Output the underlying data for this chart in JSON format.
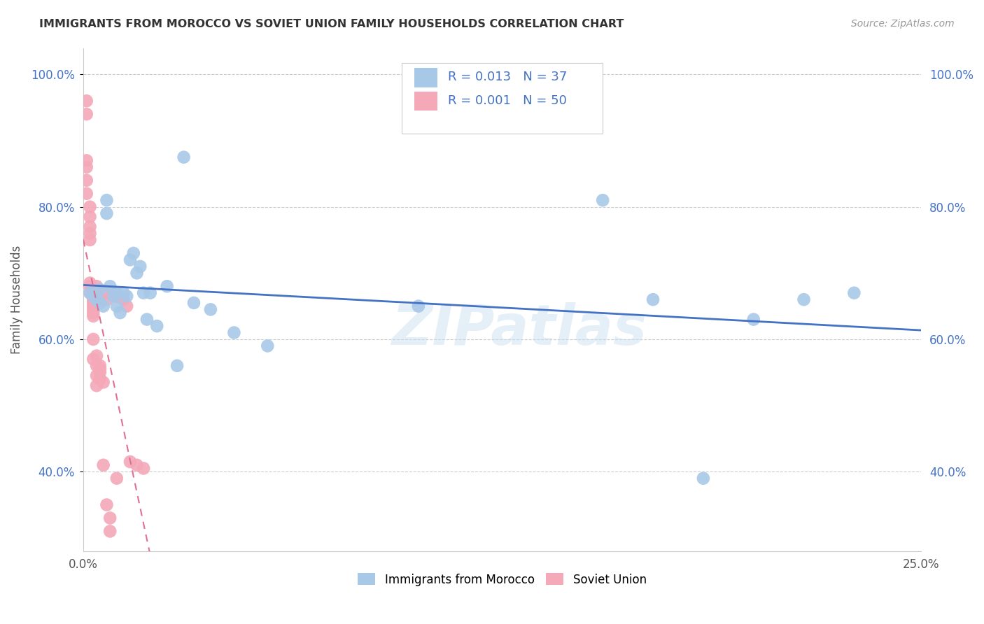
{
  "title": "IMMIGRANTS FROM MOROCCO VS SOVIET UNION FAMILY HOUSEHOLDS CORRELATION CHART",
  "source": "Source: ZipAtlas.com",
  "ylabel": "Family Households",
  "xlim": [
    0.0,
    0.25
  ],
  "ylim": [
    0.28,
    1.04
  ],
  "yticks": [
    0.4,
    0.6,
    0.8,
    1.0
  ],
  "ytick_labels": [
    "40.0%",
    "60.0%",
    "80.0%",
    "100.0%"
  ],
  "grid_color": "#cccccc",
  "legend_morocco_r": "0.013",
  "legend_morocco_n": "37",
  "legend_soviet_r": "0.001",
  "legend_soviet_n": "50",
  "legend_label_morocco": "Immigrants from Morocco",
  "legend_label_soviet": "Soviet Union",
  "color_morocco": "#a8c8e8",
  "color_soviet": "#f4a8b8",
  "trendline_morocco_color": "#4472c4",
  "trendline_soviet_color": "#e07090",
  "watermark": "ZIPatlas",
  "morocco_x": [
    0.002,
    0.003,
    0.004,
    0.005,
    0.005,
    0.006,
    0.007,
    0.007,
    0.008,
    0.009,
    0.01,
    0.01,
    0.011,
    0.012,
    0.013,
    0.014,
    0.015,
    0.016,
    0.017,
    0.018,
    0.019,
    0.02,
    0.022,
    0.025,
    0.028,
    0.03,
    0.033,
    0.038,
    0.045,
    0.055,
    0.1,
    0.155,
    0.17,
    0.185,
    0.2,
    0.215,
    0.23
  ],
  "morocco_y": [
    0.67,
    0.665,
    0.66,
    0.655,
    0.675,
    0.65,
    0.81,
    0.79,
    0.68,
    0.665,
    0.67,
    0.65,
    0.64,
    0.67,
    0.665,
    0.72,
    0.73,
    0.7,
    0.71,
    0.67,
    0.63,
    0.67,
    0.62,
    0.68,
    0.56,
    0.875,
    0.655,
    0.645,
    0.61,
    0.59,
    0.65,
    0.81,
    0.66,
    0.39,
    0.63,
    0.66,
    0.67
  ],
  "soviet_x": [
    0.001,
    0.001,
    0.001,
    0.001,
    0.001,
    0.001,
    0.002,
    0.002,
    0.002,
    0.002,
    0.002,
    0.002,
    0.002,
    0.002,
    0.003,
    0.003,
    0.003,
    0.003,
    0.003,
    0.003,
    0.003,
    0.003,
    0.003,
    0.004,
    0.004,
    0.004,
    0.004,
    0.004,
    0.004,
    0.004,
    0.004,
    0.005,
    0.005,
    0.005,
    0.005,
    0.006,
    0.006,
    0.007,
    0.007,
    0.007,
    0.008,
    0.008,
    0.009,
    0.01,
    0.01,
    0.012,
    0.013,
    0.014,
    0.016,
    0.018
  ],
  "soviet_y": [
    0.96,
    0.94,
    0.87,
    0.86,
    0.84,
    0.82,
    0.8,
    0.785,
    0.77,
    0.76,
    0.75,
    0.685,
    0.68,
    0.67,
    0.665,
    0.66,
    0.655,
    0.65,
    0.645,
    0.64,
    0.635,
    0.6,
    0.57,
    0.56,
    0.545,
    0.53,
    0.68,
    0.67,
    0.665,
    0.66,
    0.575,
    0.56,
    0.555,
    0.55,
    0.54,
    0.535,
    0.41,
    0.67,
    0.66,
    0.35,
    0.33,
    0.31,
    0.67,
    0.39,
    0.665,
    0.66,
    0.65,
    0.415,
    0.41,
    0.405
  ]
}
